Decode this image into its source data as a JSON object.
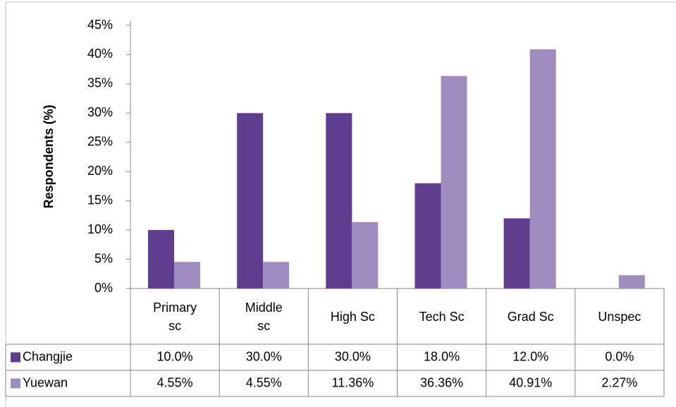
{
  "chart_data": {
    "type": "bar",
    "ylabel": "Respondents (%)",
    "categories": [
      "Primary sc",
      "Middle sc",
      "High Sc",
      "Tech Sc",
      "Grad Sc",
      "Unspec"
    ],
    "series": [
      {
        "name": "Changjie",
        "color": "#5f3d8f",
        "values": [
          10,
          30,
          30,
          18,
          12,
          0
        ],
        "value_labels": [
          "10.0%",
          "30.0%",
          "30.0%",
          "18.0%",
          "12.0%",
          "0.0%"
        ]
      },
      {
        "name": "Yuewan",
        "color": "#a08dc0",
        "values": [
          4.55,
          4.55,
          11.36,
          36.36,
          40.91,
          2.27
        ],
        "value_labels": [
          "4.55%",
          "4.55%",
          "11.36%",
          "36.36%",
          "40.91%",
          "2.27%"
        ]
      }
    ],
    "ylim": [
      0,
      45
    ],
    "yticks": [
      {
        "value": 0,
        "label": "0%"
      },
      {
        "value": 5,
        "label": "5%"
      },
      {
        "value": 10,
        "label": "10%"
      },
      {
        "value": 15,
        "label": "15%"
      },
      {
        "value": 20,
        "label": "20%"
      },
      {
        "value": 25,
        "label": "25%"
      },
      {
        "value": 30,
        "label": "30%"
      },
      {
        "value": 35,
        "label": "35%"
      },
      {
        "value": 40,
        "label": "40%"
      },
      {
        "value": 45,
        "label": "45%"
      }
    ],
    "grid": false,
    "data_table": true
  }
}
